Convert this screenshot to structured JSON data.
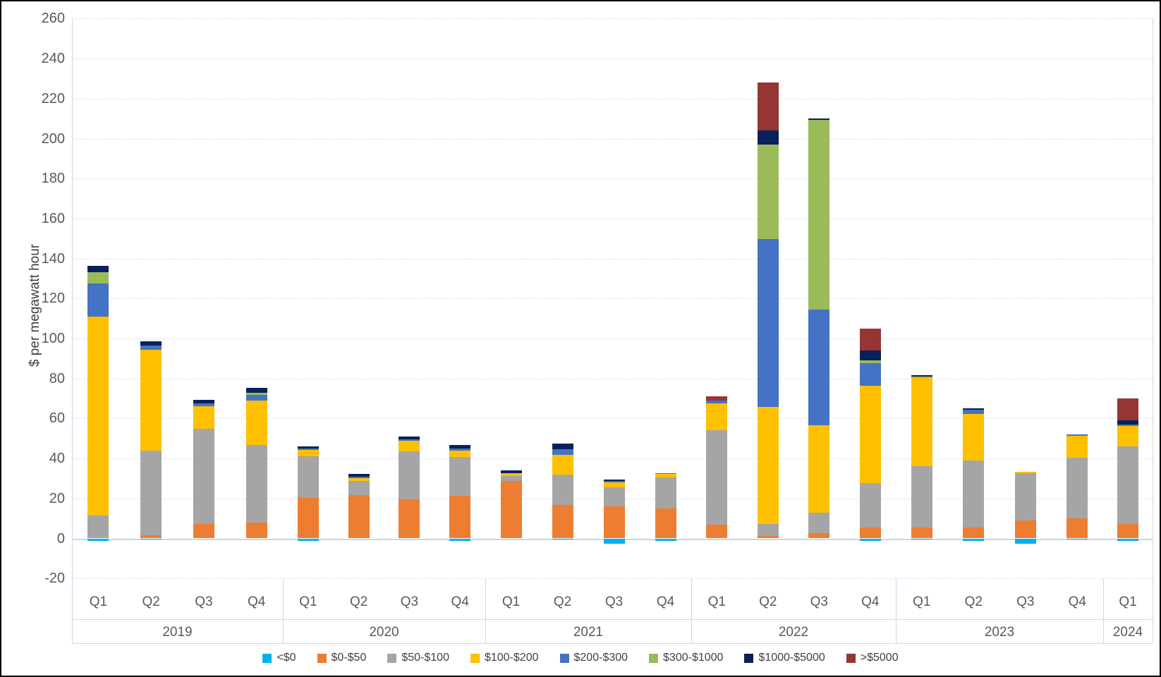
{
  "y_axis": {
    "title": "$ per megawatt hour",
    "ticks": [
      260,
      240,
      220,
      200,
      180,
      160,
      140,
      120,
      100,
      80,
      60,
      40,
      20,
      0,
      -20
    ]
  },
  "legend": [
    {
      "label": "<$0",
      "color": "#00B0F0"
    },
    {
      "label": "$0-$50",
      "color": "#ED7D31"
    },
    {
      "label": "$50-$100",
      "color": "#A5A5A5"
    },
    {
      "label": "$100-$200",
      "color": "#FFC000"
    },
    {
      "label": "$200-$300",
      "color": "#4472C4"
    },
    {
      "label": "$300-$1000",
      "color": "#9BBB59"
    },
    {
      "label": "$1000-$5000",
      "color": "#08215C"
    },
    {
      "label": ">$5000",
      "color": "#953634"
    }
  ],
  "chart_data": {
    "type": "bar",
    "stacked": true,
    "title": "",
    "xlabel": "",
    "ylabel": "$ per megawatt hour",
    "ylim": [
      -20,
      260
    ],
    "grid": "horizontal-dashed",
    "legend_position": "bottom",
    "groups": [
      {
        "year": "2019",
        "quarters": [
          "Q1",
          "Q2",
          "Q3",
          "Q4"
        ]
      },
      {
        "year": "2020",
        "quarters": [
          "Q1",
          "Q2",
          "Q3",
          "Q4"
        ]
      },
      {
        "year": "2021",
        "quarters": [
          "Q1",
          "Q2",
          "Q3",
          "Q4"
        ]
      },
      {
        "year": "2022",
        "quarters": [
          "Q1",
          "Q2",
          "Q3",
          "Q4"
        ]
      },
      {
        "year": "2023",
        "quarters": [
          "Q1",
          "Q2",
          "Q3",
          "Q4"
        ]
      },
      {
        "year": "2024",
        "quarters": [
          "Q1"
        ]
      }
    ],
    "categories": [
      "2019 Q1",
      "2019 Q2",
      "2019 Q3",
      "2019 Q4",
      "2020 Q1",
      "2020 Q2",
      "2020 Q3",
      "2020 Q4",
      "2021 Q1",
      "2021 Q2",
      "2021 Q3",
      "2021 Q4",
      "2022 Q1",
      "2022 Q2",
      "2022 Q3",
      "2022 Q4",
      "2023 Q1",
      "2023 Q2",
      "2023 Q3",
      "2023 Q4",
      "2024 Q1"
    ],
    "units": "$ per megawatt hour",
    "series": [
      {
        "name": "<$0",
        "color": "#00B0F0",
        "values": [
          -1.1,
          -0.4,
          0,
          0,
          -1.2,
          0,
          0,
          -1.2,
          0,
          -0.6,
          -2.6,
          -1.2,
          0,
          0,
          0,
          -1.4,
          -0.4,
          -1.1,
          -2.8,
          -0.7,
          -1.1
        ]
      },
      {
        "name": "$0-$50",
        "color": "#ED7D31",
        "values": [
          0,
          1.7,
          7.4,
          7.8,
          20.2,
          21.7,
          19.7,
          21.3,
          28.6,
          16.8,
          16.2,
          15.0,
          7.0,
          1.3,
          2.7,
          5.6,
          5.3,
          5.6,
          8.9,
          10.0,
          7.4
        ]
      },
      {
        "name": "$50-$100",
        "color": "#A5A5A5",
        "values": [
          11.4,
          42.1,
          47.6,
          39.1,
          20.8,
          6.9,
          23.8,
          19.3,
          2.7,
          15.0,
          9.2,
          15.5,
          47.1,
          6.1,
          10.2,
          22.2,
          30.9,
          33.3,
          23.6,
          30.4,
          38.6
        ]
      },
      {
        "name": "$100-$200",
        "color": "#FFC000",
        "values": [
          99.6,
          50.6,
          11.0,
          22.0,
          3.1,
          1.4,
          5.3,
          3.3,
          1.2,
          10.0,
          2.5,
          1.8,
          13.3,
          58.3,
          43.8,
          48.4,
          43.9,
          23.5,
          1.0,
          10.9,
          10.3
        ]
      },
      {
        "name": "$200-$300",
        "color": "#4472C4",
        "values": [
          16.5,
          2.0,
          1.6,
          3.0,
          0.8,
          0.9,
          0.9,
          1.0,
          0,
          2.7,
          0.7,
          0.5,
          1.6,
          84.1,
          57.9,
          11.5,
          0,
          1.9,
          0,
          0.8,
          0.5
        ]
      },
      {
        "name": "$300-$1000",
        "color": "#9BBB59",
        "values": [
          5.5,
          0,
          0,
          1.0,
          0,
          0,
          0,
          0,
          0,
          0,
          0,
          0,
          0,
          47.2,
          94.6,
          1.2,
          1.0,
          0,
          0,
          0,
          0
        ]
      },
      {
        "name": "$1000-$5000",
        "color": "#08215C",
        "values": [
          3.5,
          2.2,
          1.7,
          2.5,
          1.0,
          1.5,
          1.1,
          1.9,
          1.6,
          3.1,
          0.8,
          0,
          0,
          7.0,
          0.8,
          5.1,
          0.4,
          0.9,
          0,
          0,
          2.2
        ]
      },
      {
        "name": ">$5000",
        "color": "#953634",
        "values": [
          0,
          0,
          0,
          0,
          0,
          0,
          0,
          0,
          0,
          0,
          0,
          0,
          2.0,
          24.0,
          0,
          11.0,
          0,
          0,
          0,
          0,
          10.9
        ]
      }
    ]
  }
}
